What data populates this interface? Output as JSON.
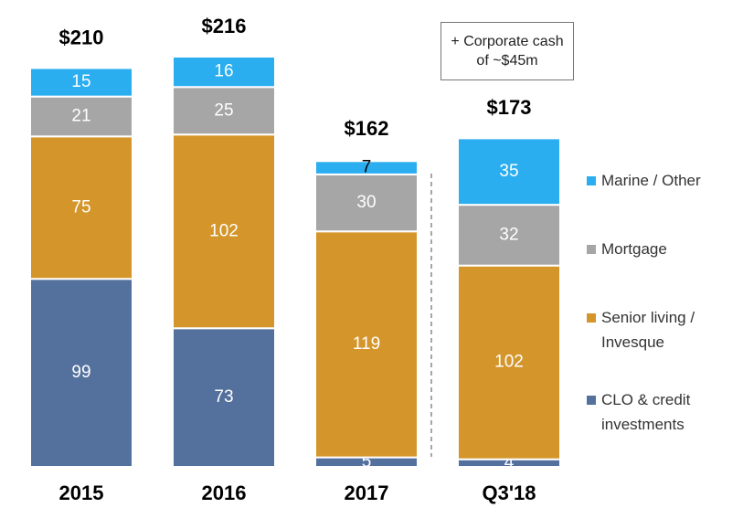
{
  "chart_data": {
    "type": "stacked_bar",
    "categories": [
      "2015",
      "2016",
      "2017",
      "Q3'18"
    ],
    "series": [
      {
        "name": "CLO & credit investments",
        "color": "#54719e",
        "values": [
          99,
          73,
          5,
          4
        ]
      },
      {
        "name": "Senior living / Invesque",
        "color": "#d4962b",
        "values": [
          75,
          102,
          119,
          102
        ]
      },
      {
        "name": "Mortgage",
        "color": "#a6a6a6",
        "values": [
          21,
          25,
          30,
          32
        ]
      },
      {
        "name": "Marine / Other",
        "color": "#2aaef0",
        "values": [
          15,
          16,
          7,
          35
        ]
      }
    ],
    "totals": {
      "values": [
        210,
        216,
        162,
        173
      ],
      "value_labels": [
        "$210",
        "$216",
        "$162",
        "$173"
      ]
    },
    "annotation": "+ Corporate cash of ~$45m",
    "legend": "right"
  }
}
